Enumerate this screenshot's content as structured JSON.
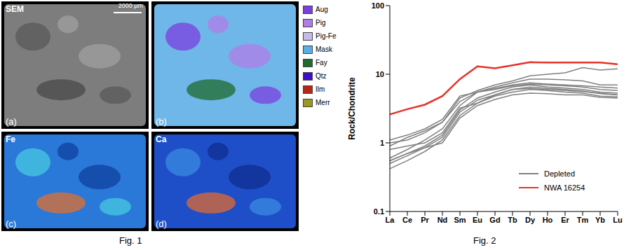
{
  "figure_1": {
    "caption": "Fig. 1",
    "scale_bar": "2000 µm",
    "panels": [
      {
        "title": "SEM",
        "label": "(a)"
      },
      {
        "label": "(b)"
      },
      {
        "title": "Fe",
        "label": "(c)"
      },
      {
        "title": "Ca",
        "label": "(d)"
      }
    ],
    "legend": [
      {
        "name": "Aug",
        "color": "#7b3fe0"
      },
      {
        "name": "Pig",
        "color": "#b07ee8"
      },
      {
        "name": "Pig-Fe",
        "color": "#c8b8f0"
      },
      {
        "name": "Mask",
        "color": "#5aaee8"
      },
      {
        "name": "Fay",
        "color": "#1e6b2e"
      },
      {
        "name": "Qtz",
        "color": "#3a10c8"
      },
      {
        "name": "Ilm",
        "color": "#b22a1a"
      },
      {
        "name": "Merr",
        "color": "#9a9a20"
      }
    ]
  },
  "chart_data": {
    "type": "line",
    "caption": "Fig. 2",
    "y_label": "Rock/Chondrite",
    "log": "y",
    "legend": "bottom-right",
    "categories": [
      "La",
      "Ce",
      "Pr",
      "Nd",
      "Sm",
      "Eu",
      "Gd",
      "Tb",
      "Dy",
      "Ho",
      "Er",
      "Tm",
      "Yb",
      "Lu"
    ],
    "ylim": [
      0.1,
      100
    ],
    "yticks": [
      0.1,
      1,
      10,
      100
    ],
    "series": [
      {
        "name": "Depleted",
        "color": "#808080",
        "values": [
          1.1,
          1.3,
          1.6,
          2.2,
          4.8,
          5.5,
          6.5,
          7.5,
          8.5,
          8.5,
          8.3,
          8,
          7,
          7
        ]
      },
      {
        "name": "Depleted",
        "color": "#808080",
        "values": [
          1.0,
          1.1,
          1.4,
          2.0,
          4.5,
          5.8,
          7,
          8,
          9.5,
          10,
          10.5,
          12.5,
          11.5,
          12
        ]
      },
      {
        "name": "Depleted",
        "color": "#808080",
        "values": [
          0.9,
          1.2,
          1.5,
          2.0,
          4.0,
          5.5,
          6.2,
          7,
          7.5,
          7.2,
          7,
          6.8,
          6.5,
          6.3
        ]
      },
      {
        "name": "Depleted",
        "color": "#808080",
        "values": [
          0.6,
          0.8,
          1.1,
          1.6,
          3.5,
          5.5,
          6,
          6.8,
          7.2,
          7,
          6.8,
          6.5,
          6,
          5.8
        ]
      },
      {
        "name": "Depleted",
        "color": "#808080",
        "values": [
          0.55,
          0.7,
          0.9,
          1.3,
          3,
          4.5,
          5.5,
          6.5,
          7,
          6.5,
          6.3,
          6,
          5.5,
          5.3
        ]
      },
      {
        "name": "Depleted",
        "color": "#808080",
        "values": [
          0.5,
          0.65,
          0.85,
          1.2,
          2.8,
          4.2,
          5,
          6,
          6.5,
          6.2,
          6,
          5.7,
          5.2,
          5
        ]
      },
      {
        "name": "Depleted",
        "color": "#808080",
        "values": [
          0.42,
          0.55,
          0.75,
          1.1,
          2.5,
          3.8,
          4.8,
          5.5,
          6,
          5.8,
          5.5,
          5.3,
          4.8,
          4.7
        ]
      },
      {
        "name": "Depleted",
        "color": "#808080",
        "values": [
          0.55,
          0.7,
          0.85,
          1.0,
          2.3,
          3.5,
          4.3,
          5,
          5.3,
          5.2,
          5,
          5,
          4.6,
          4.5
        ]
      },
      {
        "name": "Depleted",
        "color": "#808080",
        "values": [
          0.8,
          0.9,
          1.0,
          1.4,
          3.2,
          3.8,
          5,
          6,
          6.2,
          6,
          5.8,
          5.6,
          5.3,
          5
        ]
      },
      {
        "name": "NWA 16254",
        "color": "#e8302a",
        "values": [
          2.6,
          3.1,
          3.6,
          4.8,
          8.5,
          13,
          12.2,
          13.5,
          15,
          14.8,
          14.8,
          14.8,
          14.8,
          14
        ]
      }
    ]
  }
}
